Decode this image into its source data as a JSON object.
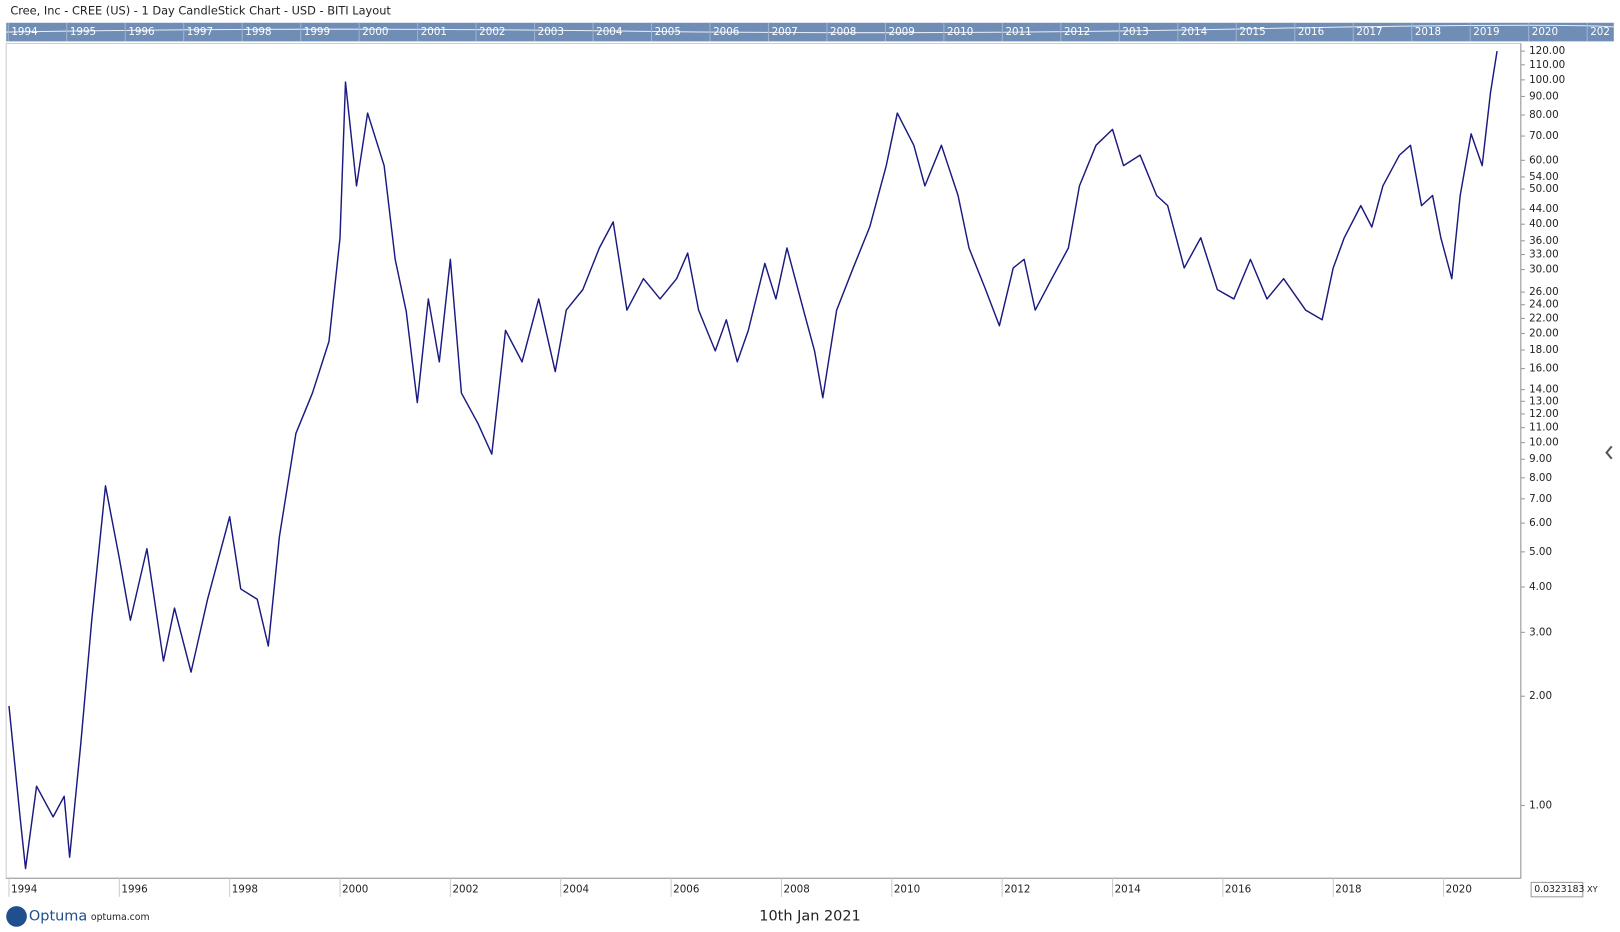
{
  "window_title": "Cree, Inc - CREE (US) - 1 Day CandleStick Chart - USD - BITI Layout",
  "navigator_years": [
    "1994",
    "1995",
    "1996",
    "1997",
    "1998",
    "1999",
    "2000",
    "2001",
    "2002",
    "2003",
    "2004",
    "2005",
    "2006",
    "2007",
    "2008",
    "2009",
    "2010",
    "2011",
    "2012",
    "2013",
    "2014",
    "2015",
    "2016",
    "2017",
    "2018",
    "2019",
    "2020",
    "202"
  ],
  "footer": {
    "brand": "Optuma",
    "site": "optuma.com",
    "date": "10th Jan 2021",
    "crosshair_value": "0.0323183",
    "mode": "XY"
  },
  "chart_data": {
    "type": "line",
    "yscale": "log",
    "color": "#1a1a80",
    "x": [
      1994.0,
      1994.2,
      1994.3,
      1994.5,
      1994.8,
      1995.0,
      1995.1,
      1995.3,
      1995.5,
      1995.75,
      1996.0,
      1996.2,
      1996.5,
      1996.8,
      1997.0,
      1997.3,
      1997.6,
      1998.0,
      1998.2,
      1998.5,
      1998.7,
      1998.9,
      1999.2,
      1999.5,
      1999.8,
      2000.0,
      2000.1,
      2000.3,
      2000.5,
      2000.8,
      2001.0,
      2001.2,
      2001.4,
      2001.6,
      2001.8,
      2002.0,
      2002.2,
      2002.5,
      2002.75,
      2003.0,
      2003.3,
      2003.6,
      2003.9,
      2004.1,
      2004.4,
      2004.7,
      2004.95,
      2005.2,
      2005.5,
      2005.8,
      2006.1,
      2006.3,
      2006.5,
      2006.8,
      2007.0,
      2007.2,
      2007.4,
      2007.7,
      2007.9,
      2008.1,
      2008.4,
      2008.6,
      2008.75,
      2009.0,
      2009.3,
      2009.6,
      2009.9,
      2010.1,
      2010.4,
      2010.6,
      2010.9,
      2011.2,
      2011.4,
      2011.7,
      2011.95,
      2012.2,
      2012.4,
      2012.6,
      2012.9,
      2013.2,
      2013.4,
      2013.7,
      2014.0,
      2014.2,
      2014.5,
      2014.8,
      2015.0,
      2015.3,
      2015.6,
      2015.9,
      2016.2,
      2016.5,
      2016.8,
      2017.1,
      2017.5,
      2017.8,
      2018.0,
      2018.2,
      2018.5,
      2018.7,
      2018.9,
      2019.2,
      2019.4,
      2019.6,
      2019.8,
      2019.95,
      2020.15,
      2020.3,
      2020.5,
      2020.7,
      2020.85,
      2020.97
    ],
    "values": [
      1.88,
      0.93,
      0.67,
      1.13,
      0.93,
      1.06,
      0.72,
      1.47,
      3.24,
      7.6,
      4.8,
      3.24,
      5.1,
      2.5,
      3.5,
      2.33,
      3.7,
      6.25,
      3.95,
      3.7,
      2.75,
      5.5,
      10.6,
      13.7,
      19,
      36.7,
      98.6,
      51,
      81,
      58,
      32,
      23,
      12.9,
      24.9,
      16.7,
      32,
      13.7,
      11.3,
      9.3,
      20.4,
      16.7,
      24.9,
      15.7,
      23.2,
      26.4,
      34.4,
      40.6,
      23.2,
      28.3,
      24.9,
      28.3,
      33.3,
      23.2,
      17.9,
      21.8,
      16.7,
      20.4,
      31.2,
      24.9,
      34.4,
      23.2,
      17.9,
      13.3,
      23.2,
      30.3,
      39.3,
      58,
      81,
      66,
      51,
      66,
      48,
      34.4,
      26.4,
      21,
      30.3,
      32,
      23.2,
      28.3,
      34.4,
      51,
      66,
      73,
      58,
      62,
      48,
      45,
      30.3,
      36.7,
      26.4,
      24.9,
      32,
      24.9,
      28.3,
      23.2,
      21.8,
      30.3,
      36.7,
      45,
      39.3,
      51,
      62,
      66,
      45,
      48,
      36.7,
      28.3,
      48,
      71,
      58,
      92,
      120
    ],
    "xlim": [
      1993.95,
      2021.4
    ],
    "xticks": [
      1994,
      1996,
      1998,
      2000,
      2002,
      2004,
      2006,
      2008,
      2010,
      2012,
      2014,
      2016,
      2018,
      2020
    ],
    "ylim": [
      0.63,
      126
    ],
    "yticks": [
      {
        "value": 120,
        "label": "120.00"
      },
      {
        "value": 110,
        "label": "110.00"
      },
      {
        "value": 100,
        "label": "100.00"
      },
      {
        "value": 90,
        "label": "90.00"
      },
      {
        "value": 80,
        "label": "80.00"
      },
      {
        "value": 70,
        "label": "70.00"
      },
      {
        "value": 60,
        "label": "60.00"
      },
      {
        "value": 54,
        "label": "54.00"
      },
      {
        "value": 50,
        "label": "50.00"
      },
      {
        "value": 44,
        "label": "44.00"
      },
      {
        "value": 40,
        "label": "40.00"
      },
      {
        "value": 36,
        "label": "36.00"
      },
      {
        "value": 33,
        "label": "33.00"
      },
      {
        "value": 30,
        "label": "30.00"
      },
      {
        "value": 26,
        "label": "26.00"
      },
      {
        "value": 24,
        "label": "24.00"
      },
      {
        "value": 22,
        "label": "22.00"
      },
      {
        "value": 20,
        "label": "20.00"
      },
      {
        "value": 18,
        "label": "18.00"
      },
      {
        "value": 16,
        "label": "16.00"
      },
      {
        "value": 14,
        "label": "14.00"
      },
      {
        "value": 13,
        "label": "13.00"
      },
      {
        "value": 12,
        "label": "12.00"
      },
      {
        "value": 11,
        "label": "11.00"
      },
      {
        "value": 10,
        "label": "10.00"
      },
      {
        "value": 9,
        "label": "9.00"
      },
      {
        "value": 8,
        "label": "8.00"
      },
      {
        "value": 7,
        "label": "7.00"
      },
      {
        "value": 6,
        "label": "6.00"
      },
      {
        "value": 5,
        "label": "5.00"
      },
      {
        "value": 4,
        "label": "4.00"
      },
      {
        "value": 3,
        "label": "3.00"
      },
      {
        "value": 2,
        "label": "2.00"
      },
      {
        "value": 1,
        "label": "1.00"
      }
    ]
  }
}
